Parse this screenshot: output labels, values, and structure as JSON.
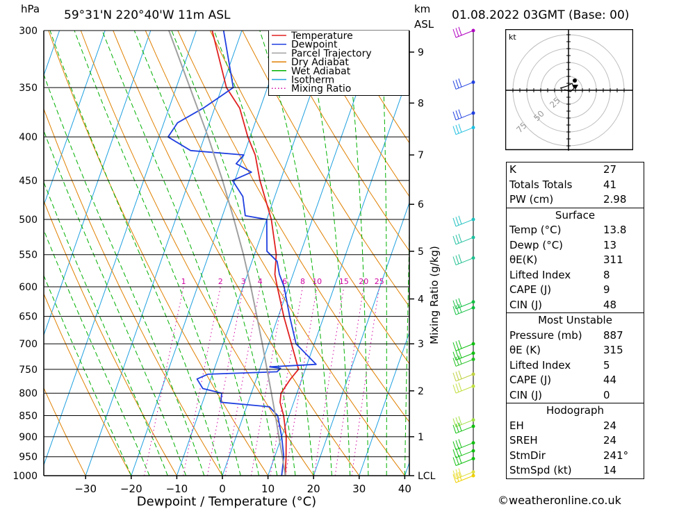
{
  "header": {
    "pressure_unit": "hPa",
    "location": "59°31'N  220°40'W  11m  ASL",
    "height_unit": "km",
    "height_unit2": "ASL",
    "datetime": "01.08.2022  03GMT  (Base: 00)"
  },
  "credit": "©weatheronline.co.uk",
  "chart_data": {
    "type": "line",
    "title": "59°31'N  220°40'W  11m  ASL",
    "xlabel": "Dewpoint / Temperature (°C)",
    "ylabel": "hPa",
    "secondary_ylabel": "Mixing Ratio (g/kg)",
    "xlim": [
      -40,
      40
    ],
    "ylim": [
      1000,
      300
    ],
    "x_ticks": [
      -30,
      -20,
      -10,
      0,
      10,
      20,
      30,
      40
    ],
    "y_ticks": [
      300,
      350,
      400,
      450,
      500,
      550,
      600,
      650,
      700,
      750,
      800,
      850,
      900,
      950,
      1000
    ],
    "km_ticks": [
      {
        "label": "9",
        "p": 318
      },
      {
        "label": "8",
        "p": 365
      },
      {
        "label": "7",
        "p": 420
      },
      {
        "label": "6",
        "p": 480
      },
      {
        "label": "5",
        "p": 545
      },
      {
        "label": "4",
        "p": 620
      },
      {
        "label": "3",
        "p": 700
      },
      {
        "label": "2",
        "p": 795
      },
      {
        "label": "1",
        "p": 900
      },
      {
        "label": "LCL",
        "p": 1000
      }
    ],
    "mixing_ratio_labels": [
      "1",
      "2",
      "3",
      "4",
      "6",
      "8",
      "10",
      "15",
      "20",
      "25"
    ],
    "mixing_ratio_values": [
      1,
      2,
      3,
      4,
      6,
      8,
      10,
      15,
      20,
      25
    ],
    "legend": [
      {
        "name": "Temperature",
        "color": "#e02020",
        "style": "solid"
      },
      {
        "name": "Dewpoint",
        "color": "#1f3fe0",
        "style": "solid"
      },
      {
        "name": "Parcel Trajectory",
        "color": "#a0a0a0",
        "style": "solid"
      },
      {
        "name": "Dry Adiabat",
        "color": "#e08000",
        "style": "solid"
      },
      {
        "name": "Wet Adiabat",
        "color": "#00b000",
        "style": "solid"
      },
      {
        "name": "Isotherm",
        "color": "#1ea0e0",
        "style": "solid"
      },
      {
        "name": "Mixing Ratio",
        "color": "#d000a0",
        "style": "dotted"
      }
    ],
    "series": [
      {
        "name": "Temperature",
        "color": "#e02020",
        "points": [
          {
            "p": 1000,
            "t": 13.8
          },
          {
            "p": 950,
            "t": 12.5
          },
          {
            "p": 900,
            "t": 11.0
          },
          {
            "p": 850,
            "t": 8.8
          },
          {
            "p": 820,
            "t": 7.0
          },
          {
            "p": 800,
            "t": 6.5
          },
          {
            "p": 770,
            "t": 7.5
          },
          {
            "p": 750,
            "t": 8.5
          },
          {
            "p": 700,
            "t": 5.0
          },
          {
            "p": 650,
            "t": 1.2
          },
          {
            "p": 600,
            "t": -2.5
          },
          {
            "p": 580,
            "t": -4.0
          },
          {
            "p": 550,
            "t": -5.2
          },
          {
            "p": 500,
            "t": -9.0
          },
          {
            "p": 450,
            "t": -14.5
          },
          {
            "p": 420,
            "t": -17.5
          },
          {
            "p": 400,
            "t": -20.5
          },
          {
            "p": 370,
            "t": -24.5
          },
          {
            "p": 350,
            "t": -29.0
          },
          {
            "p": 300,
            "t": -36.5
          }
        ]
      },
      {
        "name": "Dewpoint",
        "color": "#1f3fe0",
        "points": [
          {
            "p": 1000,
            "t": 13.0
          },
          {
            "p": 950,
            "t": 12.0
          },
          {
            "p": 900,
            "t": 10.0
          },
          {
            "p": 850,
            "t": 7.5
          },
          {
            "p": 830,
            "t": 5.0
          },
          {
            "p": 820,
            "t": -6.0
          },
          {
            "p": 800,
            "t": -6.5
          },
          {
            "p": 790,
            "t": -11.0
          },
          {
            "p": 770,
            "t": -13.0
          },
          {
            "p": 760,
            "t": -11.0
          },
          {
            "p": 755,
            "t": 4.0
          },
          {
            "p": 748,
            "t": 4.5
          },
          {
            "p": 745,
            "t": 2.0
          },
          {
            "p": 740,
            "t": 12.0
          },
          {
            "p": 700,
            "t": 6.0
          },
          {
            "p": 650,
            "t": 2.5
          },
          {
            "p": 600,
            "t": -1.0
          },
          {
            "p": 580,
            "t": -3.0
          },
          {
            "p": 560,
            "t": -4.5
          },
          {
            "p": 545,
            "t": -7.5
          },
          {
            "p": 500,
            "t": -10.0
          },
          {
            "p": 495,
            "t": -15.0
          },
          {
            "p": 470,
            "t": -17.0
          },
          {
            "p": 450,
            "t": -20.5
          },
          {
            "p": 440,
            "t": -17.0
          },
          {
            "p": 430,
            "t": -21.0
          },
          {
            "p": 420,
            "t": -20.0
          },
          {
            "p": 415,
            "t": -32.0
          },
          {
            "p": 400,
            "t": -38.0
          },
          {
            "p": 385,
            "t": -37.0
          },
          {
            "p": 370,
            "t": -32.5
          },
          {
            "p": 360,
            "t": -30.0
          },
          {
            "p": 350,
            "t": -27.5
          },
          {
            "p": 300,
            "t": -34.0
          }
        ]
      },
      {
        "name": "Parcel Trajectory",
        "color": "#a0a0a0",
        "points": [
          {
            "p": 1000,
            "t": 13.8
          },
          {
            "p": 950,
            "t": 11.7
          },
          {
            "p": 900,
            "t": 9.4
          },
          {
            "p": 850,
            "t": 7.0
          },
          {
            "p": 800,
            "t": 4.4
          },
          {
            "p": 750,
            "t": 1.6
          },
          {
            "p": 700,
            "t": -1.4
          },
          {
            "p": 650,
            "t": -4.7
          },
          {
            "p": 600,
            "t": -8.3
          },
          {
            "p": 550,
            "t": -12.4
          },
          {
            "p": 500,
            "t": -17.2
          },
          {
            "p": 450,
            "t": -22.7
          },
          {
            "p": 400,
            "t": -29.2
          },
          {
            "p": 350,
            "t": -37.0
          },
          {
            "p": 300,
            "t": -46.0
          }
        ]
      }
    ],
    "wind_levels_hpa": [
      300,
      345,
      375,
      390,
      500,
      525,
      555,
      625,
      635,
      700,
      718,
      730,
      760,
      785,
      860,
      875,
      915,
      935,
      955,
      990,
      1000
    ]
  },
  "hodograph": {
    "unit": "kt",
    "ring_labels": [
      "25",
      "50",
      "75"
    ]
  },
  "indices": {
    "rows": [
      {
        "label": "K",
        "value": "27"
      },
      {
        "label": "Totals Totals",
        "value": "41"
      },
      {
        "label": "PW (cm)",
        "value": "2.98"
      }
    ]
  },
  "surface": {
    "title": "Surface",
    "rows": [
      {
        "label": "Temp (°C)",
        "value": "13.8"
      },
      {
        "label": "Dewp (°C)",
        "value": "13"
      },
      {
        "label": "θE(K)",
        "value": "311"
      },
      {
        "label": "Lifted Index",
        "value": "8"
      },
      {
        "label": "CAPE (J)",
        "value": "9"
      },
      {
        "label": "CIN (J)",
        "value": "48"
      }
    ]
  },
  "most_unstable": {
    "title": "Most Unstable",
    "rows": [
      {
        "label": "Pressure (mb)",
        "value": "887"
      },
      {
        "label": "θE (K)",
        "value": "315"
      },
      {
        "label": "Lifted Index",
        "value": "5"
      },
      {
        "label": "CAPE (J)",
        "value": "44"
      },
      {
        "label": "CIN (J)",
        "value": "0"
      }
    ]
  },
  "hodograph_table": {
    "title": "Hodograph",
    "rows": [
      {
        "label": "EH",
        "value": "24"
      },
      {
        "label": "SREH",
        "value": "24"
      },
      {
        "label": "StmDir",
        "value": "241°"
      },
      {
        "label": "StmSpd (kt)",
        "value": "14"
      }
    ]
  },
  "colors": {
    "temperature": "#e02020",
    "dewpoint": "#1f3fe0",
    "parcel": "#a0a0a0",
    "dry_adiabat": "#e08000",
    "wet_adiabat": "#00b000",
    "isotherm": "#1ea0e0",
    "mixing_ratio": "#d000a0"
  }
}
